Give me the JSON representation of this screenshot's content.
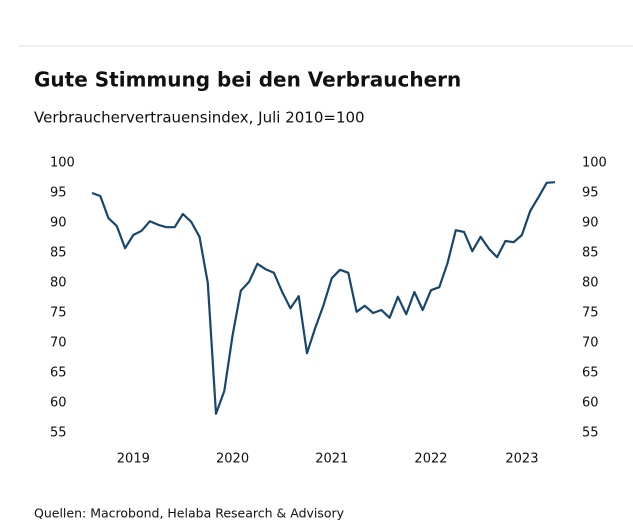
{
  "chart_data": {
    "type": "line",
    "title": "Gute Stimmung bei den Verbrauchern",
    "subtitle": "Verbrauchervertrauensindex, Juli 2010=100",
    "source": "Quellen: Macrobond, Helaba Research & Advisory",
    "categories": [
      null,
      null,
      null,
      null,
      null,
      "2019",
      null,
      null,
      null,
      null,
      null,
      null,
      null,
      null,
      null,
      null,
      null,
      "2020",
      null,
      null,
      null,
      null,
      null,
      null,
      null,
      null,
      null,
      null,
      null,
      "2021",
      null,
      null,
      null,
      null,
      null,
      null,
      null,
      null,
      null,
      null,
      null,
      "2022",
      null,
      null,
      null,
      null,
      null,
      null,
      null,
      null,
      null,
      null,
      "2023",
      null,
      null,
      null,
      null
    ],
    "series": [
      {
        "name": "Verbrauchervertrauensindex",
        "color": "#17466e",
        "values": [
          95,
          94.5,
          90.8,
          89.5,
          85.8,
          88,
          88.7,
          90.3,
          89.7,
          89.3,
          89.3,
          91.5,
          90.2,
          87.7,
          80,
          58.2,
          62,
          71.3,
          78.7,
          80.2,
          83.2,
          82.3,
          81.7,
          78.5,
          75.8,
          77.8,
          68.3,
          72.5,
          76.3,
          80.8,
          82.2,
          81.7,
          75.2,
          76.2,
          75,
          75.5,
          74.2,
          77.7,
          74.8,
          78.5,
          75.5,
          78.8,
          79.3,
          83.3,
          88.8,
          88.5,
          85.3,
          87.7,
          85.7,
          84.3,
          87,
          86.8,
          88,
          92,
          94.3,
          96.7,
          96.8
        ]
      }
    ],
    "ylim": [
      55,
      100
    ],
    "yticks": [
      55,
      60,
      65,
      70,
      75,
      80,
      85,
      90,
      95,
      100
    ],
    "y2lim": [
      55,
      100
    ],
    "y2ticks": [
      55,
      60,
      65,
      70,
      75,
      80,
      85,
      90,
      95,
      100
    ]
  }
}
